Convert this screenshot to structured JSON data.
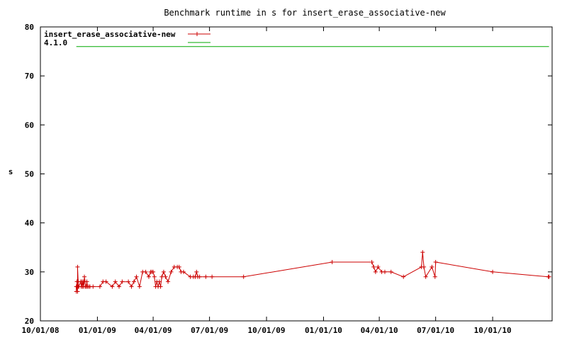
{
  "chart_data": {
    "type": "line",
    "title": "Benchmark runtime in s for insert_erase_associative-new",
    "ylabel": "s",
    "xlabel": "",
    "ylim": [
      20,
      80
    ],
    "xlim": [
      "10/01/08",
      "01/05/11"
    ],
    "yticks": [
      20,
      30,
      40,
      50,
      60,
      70,
      80
    ],
    "xticks": [
      "10/01/08",
      "01/01/09",
      "04/01/09",
      "07/01/09",
      "10/01/09",
      "01/01/10",
      "04/01/10",
      "07/01/10",
      "10/01/10"
    ],
    "grid": false,
    "legend_position": "top-left",
    "series": [
      {
        "name": "insert_erase_associative-new",
        "color": "#cc0000",
        "marker": "plus",
        "x": [
          "11/28/08",
          "11/28/08",
          "11/29/08",
          "11/29/08",
          "11/30/08",
          "11/30/08",
          "12/01/08",
          "12/01/08",
          "12/02/08",
          "12/05/08",
          "12/06/08",
          "12/07/08",
          "12/08/08",
          "12/09/08",
          "12/10/08",
          "12/11/08",
          "12/12/08",
          "12/13/08",
          "12/14/08",
          "12/15/08",
          "12/16/08",
          "12/18/08",
          "12/20/08",
          "12/25/08",
          "01/05/09",
          "01/10/09",
          "01/15/09",
          "01/25/09",
          "01/30/09",
          "02/05/09",
          "02/10/09",
          "02/20/09",
          "02/25/09",
          "03/01/09",
          "03/05/09",
          "03/10/09",
          "03/15/09",
          "03/20/09",
          "03/25/09",
          "03/28/09",
          "03/30/09",
          "04/01/09",
          "04/03/09",
          "04/05/09",
          "04/07/09",
          "04/09/09",
          "04/11/09",
          "04/13/09",
          "04/15/09",
          "04/18/09",
          "04/21/09",
          "04/25/09",
          "04/30/09",
          "05/05/09",
          "05/10/09",
          "05/13/09",
          "05/16/09",
          "05/20/09",
          "05/31/09",
          "06/05/09",
          "06/08/09",
          "06/10/09",
          "06/12/09",
          "06/15/09",
          "06/25/09",
          "07/05/09",
          "08/25/09",
          "01/15/10",
          "03/20/10",
          "03/23/10",
          "03/26/10",
          "03/30/10",
          "04/05/10",
          "04/10/10",
          "04/20/10",
          "05/10/10",
          "06/08/10",
          "06/10/10",
          "06/12/10",
          "06/15/10",
          "06/25/10",
          "06/30/10",
          "07/01/10",
          "10/01/10",
          "12/30/10",
          "12/31/10"
        ],
        "y": [
          27,
          26,
          28,
          27,
          26,
          31,
          28,
          27,
          27,
          28,
          27,
          28,
          27,
          28,
          27,
          29,
          28,
          27,
          27,
          28,
          27,
          27,
          27,
          27,
          27,
          28,
          28,
          27,
          28,
          27,
          28,
          28,
          27,
          28,
          29,
          27,
          30,
          30,
          29,
          30,
          30,
          30,
          29,
          27,
          28,
          27,
          28,
          27,
          29,
          30,
          29,
          28,
          30,
          31,
          31,
          31,
          30,
          30,
          29,
          29,
          29,
          30,
          29,
          29,
          29,
          29,
          29,
          32,
          32,
          31,
          30,
          31,
          30,
          30,
          30,
          29,
          31,
          34,
          31,
          29,
          31,
          29,
          32,
          30,
          29,
          29
        ]
      },
      {
        "name": "4.1.0",
        "color": "#00aa00",
        "marker": "none",
        "x": [
          "11/28/08",
          "12/31/10"
        ],
        "y": [
          76,
          76
        ]
      }
    ]
  }
}
